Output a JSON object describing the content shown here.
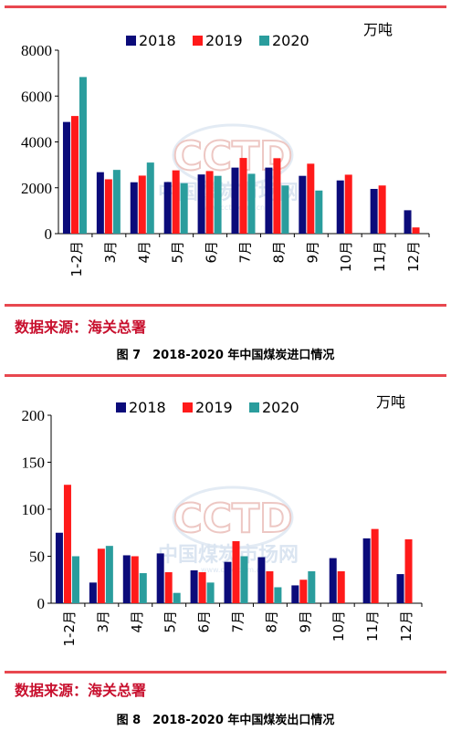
{
  "colors": {
    "s2018": "#0b0b7a",
    "s2019": "#ff1a1a",
    "s2020": "#2a9d9d",
    "rule": "#e8474f",
    "source": "#c8102e"
  },
  "watermark": {
    "logo": "CCTD",
    "cn": "中国煤炭市场网",
    "url": "www.cctd.com.cn"
  },
  "chart_data": [
    {
      "type": "bar",
      "unit": "万吨",
      "categories": [
        "1-2月",
        "3月",
        "4月",
        "5月",
        "6月",
        "7月",
        "8月",
        "9月",
        "10月",
        "11月",
        "12月"
      ],
      "ylim": [
        0,
        8000
      ],
      "yticks": [
        "0",
        "2000",
        "4000",
        "6000",
        "8000"
      ],
      "series": [
        {
          "name": "2018",
          "values": [
            4870,
            2680,
            2240,
            2250,
            2580,
            2880,
            2880,
            2520,
            2320,
            1950,
            1020
          ]
        },
        {
          "name": "2019",
          "values": [
            5130,
            2370,
            2530,
            2760,
            2730,
            3300,
            3290,
            3050,
            2570,
            2100,
            270
          ]
        },
        {
          "name": "2020",
          "values": [
            6830,
            2780,
            3100,
            2200,
            2520,
            2610,
            2100,
            1880,
            null,
            null,
            null
          ]
        }
      ],
      "source": "数据来源：海关总署",
      "caption": "图 7　2018-2020 年中国煤炭进口情况"
    },
    {
      "type": "bar",
      "unit": "万吨",
      "categories": [
        "1-2月",
        "3月",
        "4月",
        "5月",
        "6月",
        "7月",
        "8月",
        "9月",
        "10月",
        "11月",
        "12月"
      ],
      "ylim": [
        0,
        200
      ],
      "yticks": [
        "0",
        "50",
        "100",
        "150",
        "200"
      ],
      "series": [
        {
          "name": "2018",
          "values": [
            75,
            22,
            51,
            53,
            35,
            44,
            49,
            19,
            48,
            69,
            31
          ]
        },
        {
          "name": "2019",
          "values": [
            126,
            58,
            50,
            33,
            33,
            66,
            34,
            25,
            34,
            79,
            68
          ]
        },
        {
          "name": "2020",
          "values": [
            50,
            61,
            32,
            11,
            22,
            50,
            17,
            34,
            null,
            null,
            null
          ]
        }
      ],
      "source": "数据来源：海关总署",
      "caption": "图 8　2018-2020 年中国煤炭出口情况"
    }
  ]
}
